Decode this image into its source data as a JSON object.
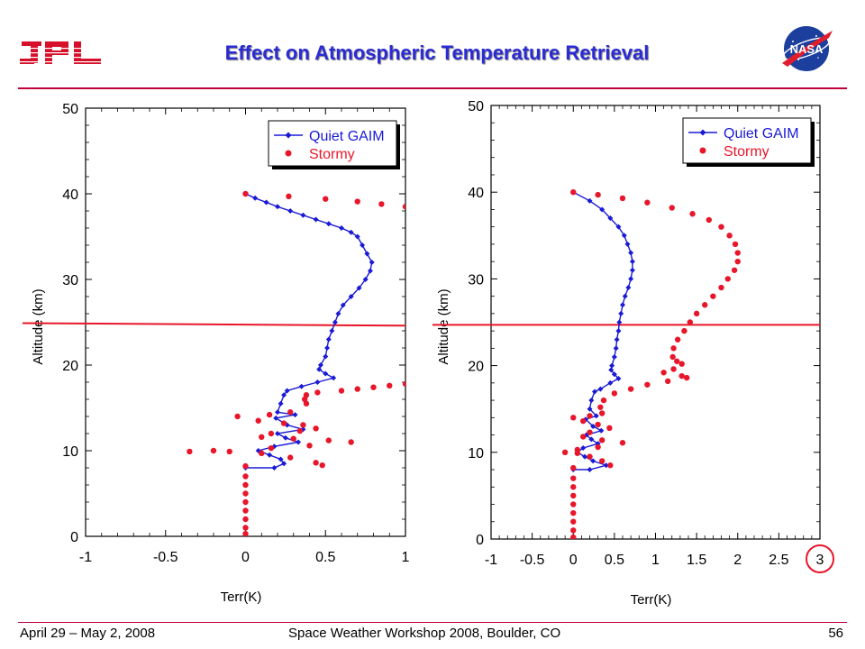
{
  "header": {
    "title": "Effect on Atmospheric Temperature Retrieval",
    "logo_left": "JPL",
    "logo_right": "NASA",
    "logo_left_icon": "jpl-logo-icon",
    "logo_right_icon": "nasa-meatball-icon",
    "accent_color": "#c0003a",
    "title_color": "#2b2bd6"
  },
  "footer": {
    "left": "April 29 – May 2, 2008",
    "center": "Space Weather Workshop 2008, Boulder, CO",
    "right": "56"
  },
  "chart_data": [
    {
      "type": "scatter",
      "xlabel": "Terr(K)",
      "ylabel": "Altitude (km)",
      "xlim": [
        -1,
        1
      ],
      "ylim": [
        0,
        50
      ],
      "xticks": [
        "-1",
        "-0.5",
        "0",
        "0.5",
        "1"
      ],
      "yticks": [
        "0",
        "10",
        "20",
        "30",
        "40",
        "50"
      ],
      "legend": {
        "placement": "top-right"
      },
      "reference_line": {
        "y_left": 24.9,
        "y_right": 24.6,
        "color": "#e8162a"
      },
      "series": [
        {
          "name": "Quiet GAIM",
          "color": "#1a1ad6",
          "marker": "diamond-line",
          "points": [
            [
              0,
              40
            ],
            [
              0.06,
              39.5
            ],
            [
              0.13,
              39
            ],
            [
              0.2,
              38.5
            ],
            [
              0.28,
              38
            ],
            [
              0.36,
              37.5
            ],
            [
              0.44,
              37
            ],
            [
              0.52,
              36.5
            ],
            [
              0.6,
              36
            ],
            [
              0.66,
              35.5
            ],
            [
              0.7,
              35
            ],
            [
              0.73,
              34
            ],
            [
              0.76,
              33
            ],
            [
              0.79,
              32
            ],
            [
              0.78,
              31
            ],
            [
              0.75,
              30
            ],
            [
              0.71,
              29
            ],
            [
              0.66,
              28
            ],
            [
              0.61,
              27
            ],
            [
              0.58,
              26
            ],
            [
              0.56,
              25
            ],
            [
              0.54,
              24
            ],
            [
              0.52,
              23
            ],
            [
              0.51,
              22
            ],
            [
              0.5,
              21
            ],
            [
              0.47,
              20
            ],
            [
              0.46,
              19.5
            ],
            [
              0.5,
              19
            ],
            [
              0.55,
              18.5
            ],
            [
              0.45,
              18
            ],
            [
              0.35,
              17.5
            ],
            [
              0.26,
              17
            ],
            [
              0.24,
              16.5
            ],
            [
              0.22,
              15.5
            ],
            [
              0.2,
              14.5
            ],
            [
              0.31,
              14.2
            ],
            [
              0.19,
              13.8
            ],
            [
              0.26,
              13
            ],
            [
              0.36,
              12.5
            ],
            [
              0.2,
              12
            ],
            [
              0.25,
              11.5
            ],
            [
              0.33,
              11
            ],
            [
              0.18,
              10.5
            ],
            [
              0.08,
              10
            ],
            [
              0.15,
              9.5
            ],
            [
              0.22,
              9
            ],
            [
              0.24,
              8.5
            ],
            [
              0.18,
              8
            ],
            [
              0,
              8
            ]
          ]
        },
        {
          "name": "Stormy",
          "color": "#e8162a",
          "marker": "circle",
          "points": [
            [
              0,
              40
            ],
            [
              0.27,
              39.7
            ],
            [
              0.5,
              39.4
            ],
            [
              0.7,
              39.1
            ],
            [
              0.85,
              38.8
            ],
            [
              1,
              38.5
            ],
            [
              1,
              17.8
            ],
            [
              0.9,
              17.6
            ],
            [
              0.8,
              17.4
            ],
            [
              0.7,
              17.2
            ],
            [
              0.6,
              17
            ],
            [
              0.45,
              16.8
            ],
            [
              0.38,
              16.5
            ],
            [
              0.37,
              16
            ],
            [
              0.38,
              15.5
            ],
            [
              0.28,
              14.5
            ],
            [
              0.15,
              14.2
            ],
            [
              -0.05,
              14
            ],
            [
              0.08,
              13.5
            ],
            [
              0.24,
              13.2
            ],
            [
              0.36,
              13
            ],
            [
              0.44,
              12.6
            ],
            [
              0.34,
              12.3
            ],
            [
              0.16,
              12
            ],
            [
              0.1,
              11.6
            ],
            [
              0.3,
              11.4
            ],
            [
              0.52,
              11.2
            ],
            [
              0.66,
              11
            ],
            [
              0.4,
              10.6
            ],
            [
              0.16,
              10.3
            ],
            [
              -0.2,
              10
            ],
            [
              -0.35,
              9.9
            ],
            [
              -0.1,
              9.9
            ],
            [
              0.1,
              9.7
            ],
            [
              0.28,
              9.2
            ],
            [
              0.44,
              8.6
            ],
            [
              0.48,
              8.3
            ],
            [
              0,
              8.2
            ],
            [
              0,
              7
            ],
            [
              0,
              6
            ],
            [
              0,
              5
            ],
            [
              0,
              4
            ],
            [
              0,
              3
            ],
            [
              0,
              2
            ],
            [
              0,
              1
            ],
            [
              0,
              0.3
            ]
          ]
        }
      ]
    },
    {
      "type": "scatter",
      "xlabel": "Terr(K)",
      "ylabel": "Altitude (km)",
      "xlim": [
        -1,
        3
      ],
      "ylim": [
        0,
        50
      ],
      "xticks": [
        "-1",
        "-0.5",
        "0",
        "0.5",
        "1",
        "1.5",
        "2",
        "2.5",
        "3"
      ],
      "yticks": [
        "0",
        "10",
        "20",
        "30",
        "40",
        "50"
      ],
      "legend": {
        "placement": "top-right"
      },
      "reference_line": {
        "y_left": 24.7,
        "y_right": 24.7,
        "color": "#e8162a"
      },
      "highlighted_tick": "3",
      "series": [
        {
          "name": "Quiet GAIM",
          "color": "#1a1ad6",
          "marker": "diamond-line",
          "points": [
            [
              0,
              40
            ],
            [
              0.2,
              39
            ],
            [
              0.35,
              38
            ],
            [
              0.45,
              37
            ],
            [
              0.55,
              36
            ],
            [
              0.62,
              35
            ],
            [
              0.66,
              34
            ],
            [
              0.7,
              33
            ],
            [
              0.72,
              32
            ],
            [
              0.72,
              31
            ],
            [
              0.7,
              30
            ],
            [
              0.67,
              29
            ],
            [
              0.63,
              28
            ],
            [
              0.6,
              27
            ],
            [
              0.58,
              26
            ],
            [
              0.56,
              25
            ],
            [
              0.55,
              24
            ],
            [
              0.53,
              23
            ],
            [
              0.52,
              22
            ],
            [
              0.5,
              21
            ],
            [
              0.47,
              20
            ],
            [
              0.46,
              19.5
            ],
            [
              0.5,
              19
            ],
            [
              0.55,
              18.5
            ],
            [
              0.45,
              18
            ],
            [
              0.33,
              17.3
            ],
            [
              0.26,
              17
            ],
            [
              0.22,
              16
            ],
            [
              0.2,
              15
            ],
            [
              0.28,
              14.2
            ],
            [
              0.15,
              13.8
            ],
            [
              0.24,
              13
            ],
            [
              0.34,
              12.5
            ],
            [
              0.16,
              12
            ],
            [
              0.22,
              11.5
            ],
            [
              0.3,
              11
            ],
            [
              0.12,
              10.5
            ],
            [
              0.05,
              10
            ],
            [
              0.14,
              9.5
            ],
            [
              0.24,
              9
            ],
            [
              0.4,
              8.5
            ],
            [
              0.2,
              8
            ],
            [
              0,
              8
            ]
          ]
        },
        {
          "name": "Stormy",
          "color": "#e8162a",
          "marker": "circle",
          "points": [
            [
              0,
              40
            ],
            [
              0.3,
              39.7
            ],
            [
              0.6,
              39.3
            ],
            [
              0.9,
              38.8
            ],
            [
              1.2,
              38.2
            ],
            [
              1.45,
              37.5
            ],
            [
              1.65,
              36.8
            ],
            [
              1.8,
              36
            ],
            [
              1.9,
              35
            ],
            [
              1.97,
              34
            ],
            [
              2,
              33
            ],
            [
              2,
              32
            ],
            [
              1.96,
              31
            ],
            [
              1.88,
              30
            ],
            [
              1.8,
              29
            ],
            [
              1.7,
              28
            ],
            [
              1.6,
              27
            ],
            [
              1.5,
              26
            ],
            [
              1.42,
              25
            ],
            [
              1.35,
              24
            ],
            [
              1.27,
              23
            ],
            [
              1.22,
              22
            ],
            [
              1.21,
              21
            ],
            [
              1.26,
              20.5
            ],
            [
              1.32,
              20.2
            ],
            [
              1.22,
              19.6
            ],
            [
              1.1,
              19.2
            ],
            [
              1.32,
              18.8
            ],
            [
              1.38,
              18.6
            ],
            [
              1.15,
              18.2
            ],
            [
              0.9,
              17.8
            ],
            [
              0.7,
              17.3
            ],
            [
              0.5,
              16.8
            ],
            [
              0.37,
              16
            ],
            [
              0.33,
              15.2
            ],
            [
              0.35,
              14.5
            ],
            [
              0.2,
              14.2
            ],
            [
              0,
              14
            ],
            [
              0.12,
              13.6
            ],
            [
              0.3,
              13.2
            ],
            [
              0.44,
              12.8
            ],
            [
              0.2,
              12.3
            ],
            [
              0.12,
              11.8
            ],
            [
              0.35,
              11.4
            ],
            [
              0.6,
              11.1
            ],
            [
              0.3,
              10.6
            ],
            [
              0.05,
              10.3
            ],
            [
              -0.1,
              10
            ],
            [
              0.05,
              9.9
            ],
            [
              0.2,
              9.5
            ],
            [
              0.35,
              9
            ],
            [
              0.45,
              8.5
            ],
            [
              0,
              8.2
            ],
            [
              0,
              7
            ],
            [
              0,
              6
            ],
            [
              0,
              5
            ],
            [
              0,
              4
            ],
            [
              0,
              3
            ],
            [
              0,
              2
            ],
            [
              0,
              1
            ],
            [
              0,
              0.2
            ]
          ]
        }
      ]
    }
  ]
}
